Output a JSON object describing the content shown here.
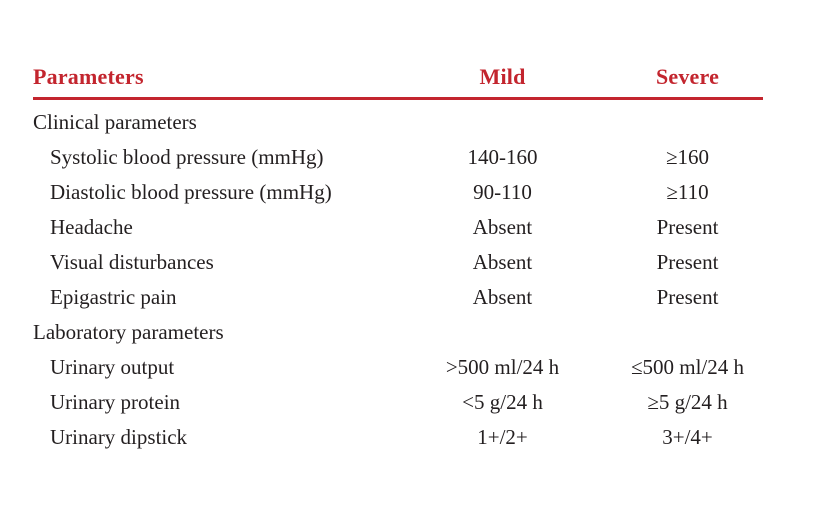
{
  "table": {
    "columns": [
      "Parameters",
      "Mild",
      "Severe"
    ],
    "rows": [
      {
        "label": "Clinical parameters",
        "mild": "",
        "severe": "",
        "section": true
      },
      {
        "label": "Systolic blood pressure (mmHg)",
        "mild": "140-160",
        "severe": "≥160",
        "section": false
      },
      {
        "label": "Diastolic blood pressure (mmHg)",
        "mild": "90-110",
        "severe": "≥110",
        "section": false
      },
      {
        "label": "Headache",
        "mild": "Absent",
        "severe": "Present",
        "section": false
      },
      {
        "label": "Visual disturbances",
        "mild": "Absent",
        "severe": "Present",
        "section": false
      },
      {
        "label": "Epigastric pain",
        "mild": "Absent",
        "severe": "Present",
        "section": false
      },
      {
        "label": "Laboratory parameters",
        "mild": "",
        "severe": "",
        "section": true
      },
      {
        "label": "Urinary output",
        "mild": ">500 ml/24 h",
        "severe": "≤500 ml/24 h",
        "section": false
      },
      {
        "label": "Urinary protein",
        "mild": "<5 g/24 h",
        "severe": "≥5 g/24 h",
        "section": false
      },
      {
        "label": "Urinary dipstick",
        "mild": "1+/2+",
        "severe": "3+/4+",
        "section": false
      }
    ],
    "accent_color": "#c3252e",
    "text_color": "#231f20",
    "background_color": "#ffffff"
  }
}
